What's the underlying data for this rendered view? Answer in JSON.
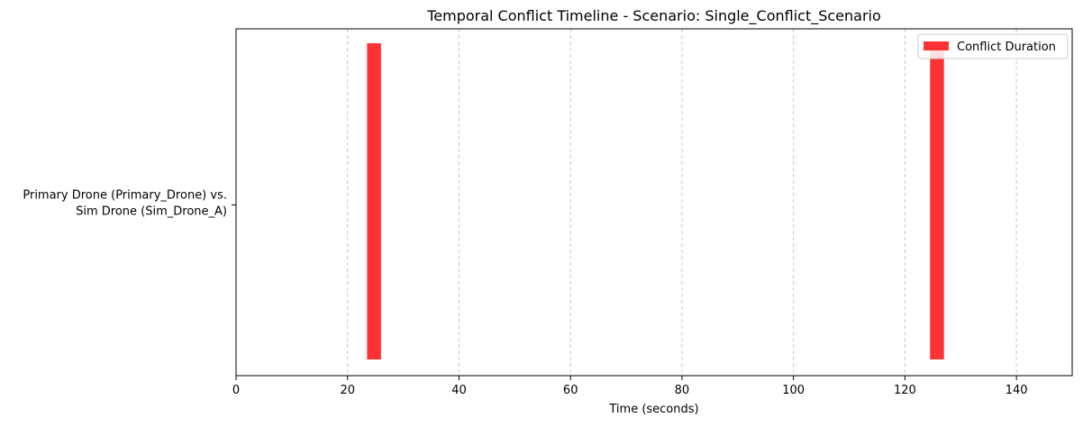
{
  "chart_data": {
    "type": "bar",
    "orientation": "horizontal",
    "title": "Temporal Conflict Timeline - Scenario: Single_Conflict_Scenario",
    "xlabel": "Time (seconds)",
    "ylabel": "",
    "xlim": [
      0,
      150
    ],
    "x_ticks": [
      0,
      20,
      40,
      60,
      80,
      100,
      120,
      140
    ],
    "x_tick_labels": [
      "0",
      "20",
      "40",
      "60",
      "80",
      "100",
      "120",
      "140"
    ],
    "categories": [
      "Primary Drone (Primary_Drone) vs.\nSim Drone (Sim_Drone_A)"
    ],
    "category_label_lines": [
      "Primary Drone (Primary_Drone) vs.",
      "Sim Drone (Sim_Drone_A)"
    ],
    "series": [
      {
        "name": "Conflict Duration",
        "color": "#ff3333",
        "intervals": [
          {
            "category": 0,
            "start": 23.5,
            "end": 26.0
          },
          {
            "category": 0,
            "start": 124.5,
            "end": 127.0
          }
        ]
      }
    ],
    "grid": {
      "x": true,
      "y": false,
      "style": "dashed",
      "color": "#c8c8c8"
    },
    "legend": {
      "position": "top-right",
      "entries": [
        "Conflict Duration"
      ]
    }
  }
}
